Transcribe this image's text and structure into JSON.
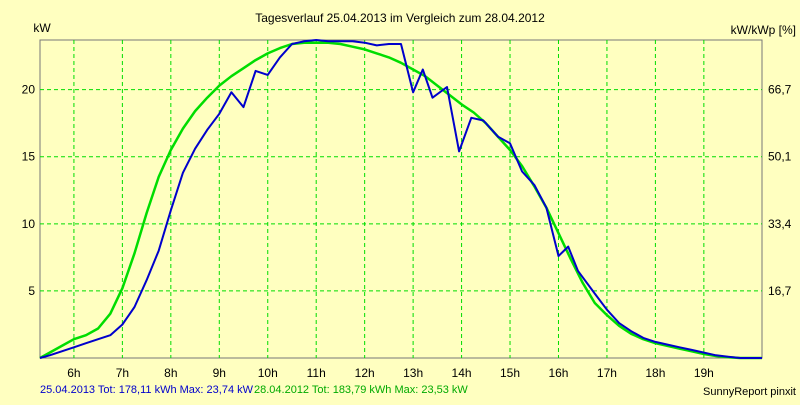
{
  "chart_data": {
    "type": "line",
    "title": "Tagesverlauf 25.04.2013 im Vergleich zum 28.04.2012",
    "ylabel_left": "kW",
    "ylabel_right": "kW/kWp [%]",
    "xlim": [
      5.3,
      20.2
    ],
    "ylim": [
      0,
      23.7
    ],
    "x_ticks": [
      6,
      7,
      8,
      9,
      10,
      11,
      12,
      13,
      14,
      15,
      16,
      17,
      18,
      19
    ],
    "x_tick_labels": [
      "6h",
      "7h",
      "8h",
      "9h",
      "10h",
      "11h",
      "12h",
      "13h",
      "14h",
      "15h",
      "16h",
      "17h",
      "18h",
      "19h"
    ],
    "y_ticks_left": [
      5,
      10,
      15,
      20
    ],
    "y_ticks_right": [
      {
        "label": "16,7",
        "y": 5
      },
      {
        "label": "33,4",
        "y": 10
      },
      {
        "label": "50,1",
        "y": 15
      },
      {
        "label": "66,7",
        "y": 20
      }
    ],
    "grid": true,
    "series": [
      {
        "name": "25.04.2013",
        "color": "#0000cc",
        "x": [
          5.3,
          5.5,
          5.75,
          6,
          6.25,
          6.5,
          6.75,
          7,
          7.25,
          7.5,
          7.75,
          8,
          8.25,
          8.5,
          8.75,
          9,
          9.25,
          9.5,
          9.75,
          10,
          10.25,
          10.5,
          10.75,
          11,
          11.25,
          11.5,
          11.75,
          12,
          12.25,
          12.5,
          12.75,
          13,
          13.2,
          13.4,
          13.7,
          13.95,
          14.2,
          14.45,
          14.75,
          15,
          15.25,
          15.5,
          15.75,
          16,
          16.2,
          16.4,
          16.75,
          17,
          17.25,
          17.5,
          17.75,
          18,
          18.25,
          18.5,
          18.75,
          19,
          19.25,
          19.5,
          19.75,
          20.2
        ],
        "y": [
          0,
          0.2,
          0.5,
          0.8,
          1.1,
          1.4,
          1.7,
          2.5,
          3.8,
          5.8,
          8.0,
          11.0,
          13.8,
          15.6,
          17.0,
          18.2,
          19.8,
          18.7,
          21.4,
          21.1,
          22.4,
          23.4,
          23.6,
          23.7,
          23.6,
          23.6,
          23.6,
          23.5,
          23.3,
          23.4,
          23.4,
          19.8,
          21.5,
          19.4,
          20.2,
          15.4,
          17.9,
          17.7,
          16.5,
          16.0,
          13.9,
          12.9,
          11.2,
          7.6,
          8.3,
          6.5,
          4.8,
          3.6,
          2.6,
          2.0,
          1.5,
          1.2,
          1.0,
          0.8,
          0.6,
          0.4,
          0.2,
          0.1,
          0,
          0
        ]
      },
      {
        "name": "28.04.2012",
        "color": "#00dd00",
        "x": [
          5.3,
          5.5,
          5.75,
          6,
          6.25,
          6.5,
          6.75,
          7,
          7.25,
          7.5,
          7.75,
          8,
          8.25,
          8.5,
          8.75,
          9,
          9.25,
          9.5,
          9.75,
          10,
          10.25,
          10.5,
          10.75,
          11,
          11.25,
          11.5,
          11.75,
          12,
          12.25,
          12.5,
          12.75,
          13,
          13.25,
          13.5,
          13.75,
          14,
          14.25,
          14.5,
          14.75,
          15,
          15.25,
          15.5,
          15.75,
          16,
          16.25,
          16.5,
          16.75,
          17,
          17.25,
          17.5,
          17.75,
          18,
          18.25,
          18.5,
          18.75,
          19,
          19.25,
          19.5,
          19.75,
          20.2
        ],
        "y": [
          0,
          0.4,
          0.9,
          1.4,
          1.7,
          2.2,
          3.3,
          5.2,
          7.8,
          10.8,
          13.5,
          15.5,
          17.1,
          18.4,
          19.4,
          20.3,
          21.0,
          21.6,
          22.2,
          22.7,
          23.1,
          23.4,
          23.5,
          23.5,
          23.5,
          23.4,
          23.2,
          23.0,
          22.7,
          22.4,
          22.0,
          21.5,
          21.0,
          20.3,
          19.6,
          18.9,
          18.3,
          17.5,
          16.5,
          15.5,
          14.3,
          12.8,
          11.2,
          9.3,
          7.4,
          5.6,
          4.1,
          3.2,
          2.4,
          1.8,
          1.4,
          1.1,
          0.9,
          0.7,
          0.5,
          0.3,
          0.15,
          0.05,
          0,
          0
        ]
      }
    ]
  },
  "footer": {
    "series1_text": "25.04.2013 Tot: 178,11 kWh Max: 23,74 kW",
    "series2_text": "28.04.2012 Tot: 183,79 kWh Max: 23,53 kW",
    "credit": "SunnyReport pinxit"
  }
}
